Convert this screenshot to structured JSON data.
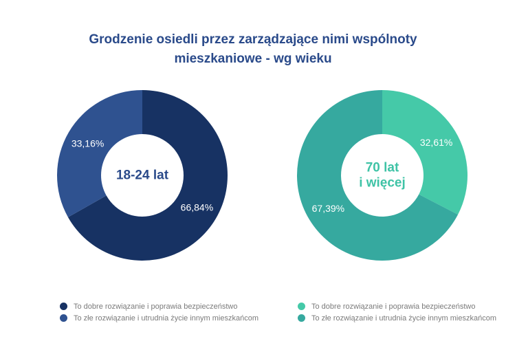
{
  "title_line1": "Grodzenie osiedli przez zarządzające nimi wspólnoty",
  "title_line2": "mieszkaniowe - wg wieku",
  "chart_data": [
    {
      "type": "pie",
      "center_label": [
        "18-24 lat"
      ],
      "center_color": "#2a4a8a",
      "series": [
        {
          "name": "To dobre rozwiązanie i poprawia bezpieczeństwo",
          "value": 66.84,
          "label": "66,84%",
          "color": "#173263"
        },
        {
          "name": "To złe rozwiązanie i utrudnia życie innym mieszkańcom",
          "value": 33.16,
          "label": "33,16%",
          "color": "#2f5290"
        }
      ]
    },
    {
      "type": "pie",
      "center_label": [
        "70 lat",
        "i więcej"
      ],
      "center_color": "#3fc3a6",
      "series": [
        {
          "name": "To dobre rozwiązanie i poprawia bezpieczeństwo",
          "value": 32.61,
          "label": "32,61%",
          "color": "#45c9a8"
        },
        {
          "name": "To złe rozwiązanie i utrudnia życie innym mieszkańcom",
          "value": 67.39,
          "label": "67,39%",
          "color": "#36a99f"
        }
      ]
    }
  ]
}
